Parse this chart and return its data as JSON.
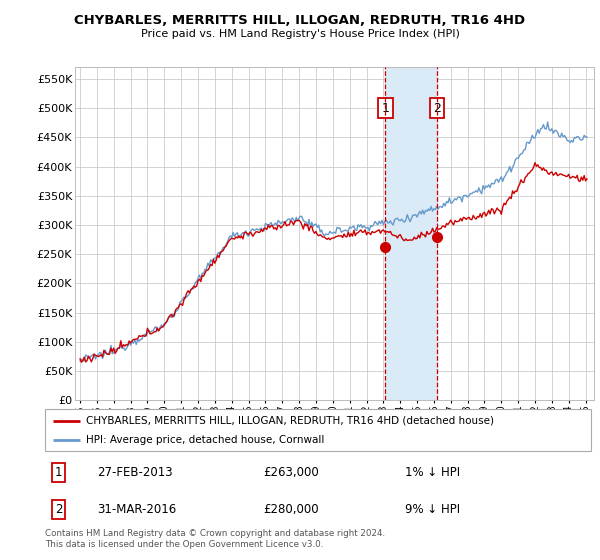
{
  "title": "CHYBARLES, MERRITTS HILL, ILLOGAN, REDRUTH, TR16 4HD",
  "subtitle": "Price paid vs. HM Land Registry's House Price Index (HPI)",
  "ylabel_ticks": [
    "£0",
    "£50K",
    "£100K",
    "£150K",
    "£200K",
    "£250K",
    "£300K",
    "£350K",
    "£400K",
    "£450K",
    "£500K",
    "£550K"
  ],
  "ylim": [
    0,
    570000
  ],
  "yticks": [
    0,
    50000,
    100000,
    150000,
    200000,
    250000,
    300000,
    350000,
    400000,
    450000,
    500000,
    550000
  ],
  "hpi_color": "#6699cc",
  "price_color": "#cc0000",
  "transaction1_year": 2013.125,
  "transaction1_price": 263000,
  "transaction2_year": 2016.208,
  "transaction2_price": 280000,
  "legend_label1": "CHYBARLES, MERRITTS HILL, ILLOGAN, REDRUTH, TR16 4HD (detached house)",
  "legend_label2": "HPI: Average price, detached house, Cornwall",
  "table_row1": [
    "1",
    "27-FEB-2013",
    "£263,000",
    "1% ↓ HPI"
  ],
  "table_row2": [
    "2",
    "31-MAR-2016",
    "£280,000",
    "9% ↓ HPI"
  ],
  "footnote": "Contains HM Land Registry data © Crown copyright and database right 2024.\nThis data is licensed under the Open Government Licence v3.0.",
  "background_color": "#ffffff",
  "plot_bg_color": "#ffffff",
  "grid_color": "#cccccc",
  "highlight_bg": "#daeaf7",
  "xmin": 1994.7,
  "xmax": 2025.5
}
